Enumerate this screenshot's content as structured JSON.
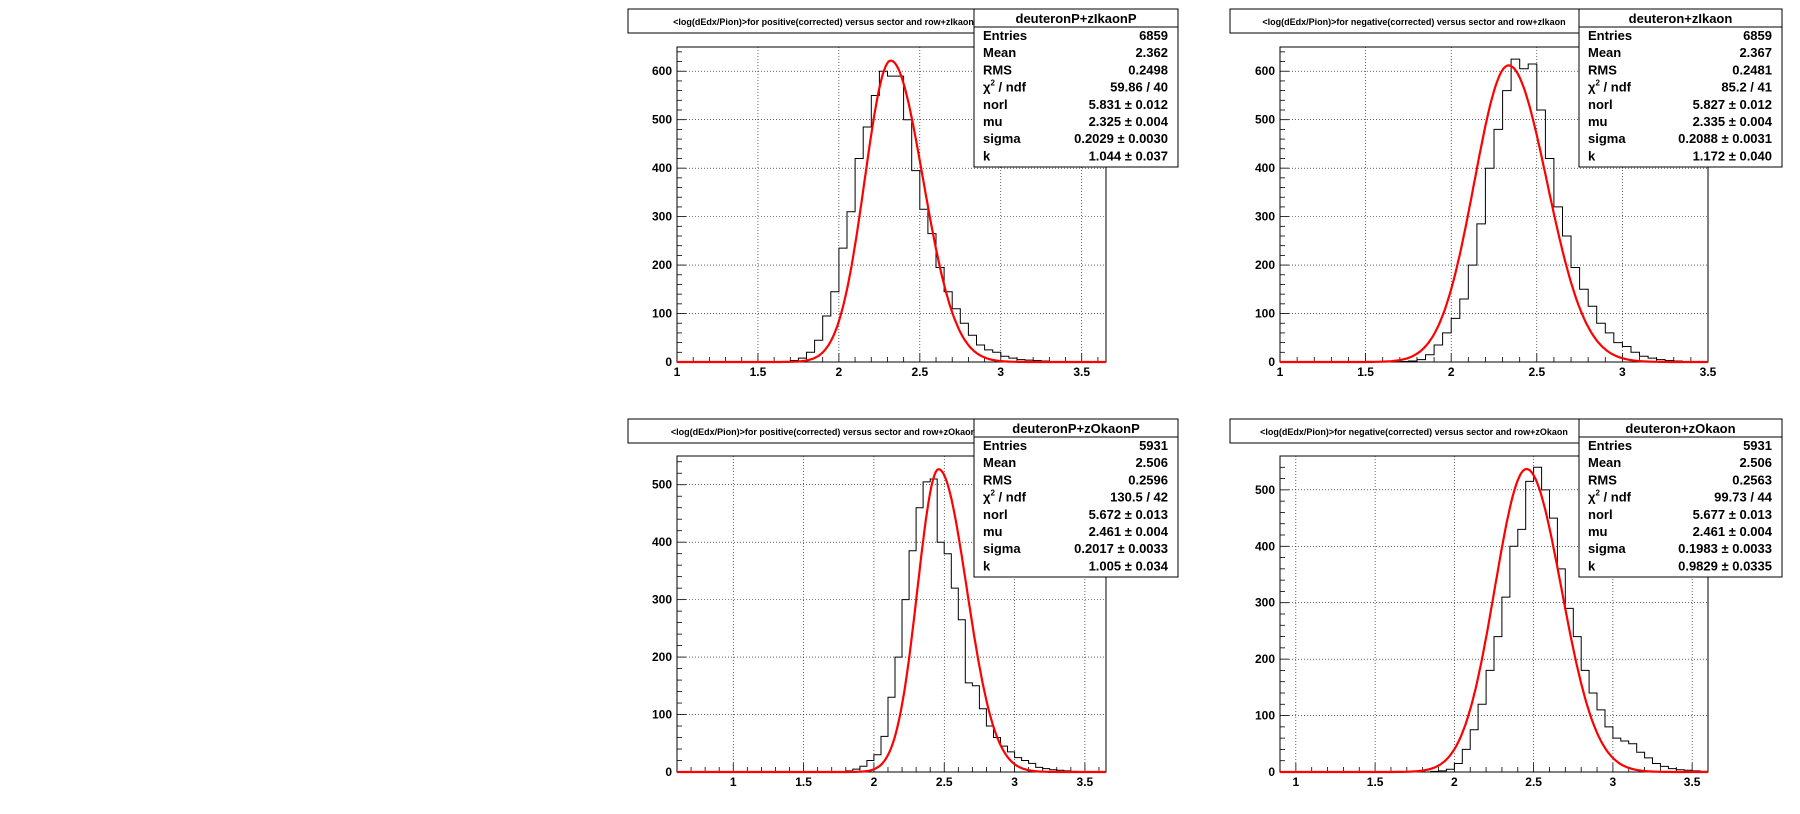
{
  "pads": [
    {
      "title": "<log(dEdx/Pion)>for positive(corrected) versus sector and row+zIkaonP",
      "stats_name": "deuteronP+zIkaonP",
      "stats": {
        "entries": "6859",
        "mean": "2.362",
        "rms": "0.2498",
        "chi2ndf": "59.86 / 40",
        "norl": "5.831 ± 0.012",
        "mu": "2.325 ± 0.004",
        "sigma": "0.2029 ± 0.0030",
        "k": "1.044 ± 0.037"
      }
    },
    {
      "title": "<log(dEdx/Pion)>for negative(corrected) versus sector and row+zIkaon",
      "stats_name": "deuteron+zIkaon",
      "stats": {
        "entries": "6859",
        "mean": "2.367",
        "rms": "0.2481",
        "chi2ndf": "85.2 / 41",
        "norl": "5.827 ± 0.012",
        "mu": "2.335 ± 0.004",
        "sigma": "0.2088 ± 0.0031",
        "k": "1.172 ± 0.040"
      }
    },
    {
      "title": "<log(dEdx/Pion)>for positive(corrected) versus sector and row+zOkaonP",
      "stats_name": "deuteronP+zOkaonP",
      "stats": {
        "entries": "5931",
        "mean": "2.506",
        "rms": "0.2596",
        "chi2ndf": "130.5 / 42",
        "norl": "5.672 ± 0.013",
        "mu": "2.461 ± 0.004",
        "sigma": "0.2017 ± 0.0033",
        "k": "1.005 ± 0.034"
      }
    },
    {
      "title": "<log(dEdx/Pion)>for negative(corrected) versus sector and row+zOkaon",
      "stats_name": "deuteron+zOkaon",
      "stats": {
        "entries": "5931",
        "mean": "2.506",
        "rms": "0.2563",
        "chi2ndf": "99.73 / 44",
        "norl": "5.677 ± 0.013",
        "mu": "2.461 ± 0.004",
        "sigma": "0.1983 ± 0.0033",
        "k": "0.9829 ± 0.0335"
      }
    }
  ],
  "stat_labels": {
    "entries": "Entries",
    "mean": "Mean",
    "rms": "RMS",
    "chi2ndf_chi": "χ",
    "chi2ndf_sup": "2",
    "chi2ndf_rest": " / ndf",
    "norl": "norl",
    "mu": "mu",
    "sigma": "sigma",
    "k": "k"
  },
  "colors": {
    "fit": "#ff0000",
    "histogram": "#000000",
    "grid": "#000000",
    "background": "#ffffff"
  },
  "chart_data": [
    {
      "type": "bar",
      "style": "step-histogram-with-fit",
      "xlim": [
        1,
        3.65
      ],
      "ylim": [
        0,
        650
      ],
      "xticks": [
        1,
        1.5,
        2,
        2.5,
        3,
        3.5
      ],
      "yticks": [
        0,
        100,
        200,
        300,
        400,
        500,
        600
      ],
      "grid": true,
      "legend": "top-right",
      "hist": {
        "x0": 1.0,
        "binwidth": 0.05,
        "values": [
          0,
          0,
          0,
          0,
          0,
          0,
          0,
          0,
          0,
          0,
          0,
          0,
          0,
          1,
          3,
          8,
          20,
          45,
          95,
          145,
          235,
          310,
          420,
          485,
          550,
          600,
          590,
          590,
          500,
          395,
          315,
          265,
          195,
          145,
          110,
          80,
          55,
          35,
          25,
          20,
          12,
          8,
          5,
          4,
          3,
          2,
          1,
          0,
          0,
          0,
          0,
          0,
          0
        ]
      },
      "fit": {
        "norm": 622,
        "mu": 2.32,
        "sigma_left": 0.16,
        "sigma_right": 0.2
      }
    },
    {
      "type": "bar",
      "style": "step-histogram-with-fit",
      "xlim": [
        1,
        3.5
      ],
      "ylim": [
        0,
        650
      ],
      "xticks": [
        1,
        1.5,
        2,
        2.5,
        3,
        3.5
      ],
      "yticks": [
        0,
        100,
        200,
        300,
        400,
        500,
        600
      ],
      "grid": true,
      "legend": "top-right",
      "hist": {
        "x0": 1.0,
        "binwidth": 0.05,
        "values": [
          0,
          0,
          0,
          0,
          0,
          0,
          0,
          0,
          0,
          0,
          0,
          0,
          0,
          0,
          1,
          2,
          5,
          15,
          35,
          60,
          90,
          130,
          200,
          285,
          400,
          480,
          560,
          625,
          605,
          615,
          520,
          420,
          320,
          260,
          195,
          150,
          115,
          80,
          60,
          40,
          32,
          20,
          12,
          8,
          5,
          3,
          2,
          1,
          0,
          0
        ]
      },
      "fit": {
        "norm": 612,
        "mu": 2.335,
        "sigma_left": 0.2,
        "sigma_right": 0.225
      }
    },
    {
      "type": "bar",
      "style": "step-histogram-with-fit",
      "xlim": [
        0.6,
        3.65
      ],
      "ylim": [
        0,
        550
      ],
      "xticks": [
        1,
        1.5,
        2,
        2.5,
        3,
        3.5
      ],
      "yticks": [
        0,
        100,
        200,
        300,
        400,
        500
      ],
      "grid": true,
      "legend": "top-right",
      "hist": {
        "x0": 1.8,
        "binwidth": 0.05,
        "values": [
          2,
          5,
          10,
          20,
          30,
          62,
          130,
          200,
          300,
          385,
          460,
          505,
          510,
          400,
          380,
          320,
          265,
          155,
          150,
          110,
          80,
          60,
          45,
          35,
          25,
          20,
          15,
          8,
          6,
          4,
          3,
          2,
          1,
          0,
          0,
          0,
          0,
          0
        ]
      },
      "fit": {
        "norm": 527,
        "mu": 2.46,
        "sigma_left": 0.15,
        "sigma_right": 0.2
      }
    },
    {
      "type": "bar",
      "style": "step-histogram-with-fit",
      "xlim": [
        0.9,
        3.6
      ],
      "ylim": [
        0,
        560
      ],
      "xticks": [
        1,
        1.5,
        2,
        2.5,
        3,
        3.5
      ],
      "yticks": [
        0,
        100,
        200,
        300,
        400,
        500
      ],
      "grid": true,
      "legend": "top-right",
      "hist": {
        "x0": 1.0,
        "binwidth": 0.05,
        "values": [
          0,
          0,
          0,
          0,
          0,
          0,
          0,
          0,
          0,
          0,
          0,
          0,
          0,
          0,
          0,
          0,
          0,
          1,
          2,
          5,
          15,
          40,
          75,
          120,
          180,
          240,
          310,
          400,
          430,
          515,
          540,
          500,
          450,
          360,
          290,
          240,
          180,
          140,
          110,
          80,
          60,
          55,
          50,
          35,
          25,
          15,
          10,
          6,
          4,
          3,
          2,
          1,
          0,
          0
        ]
      },
      "fit": {
        "norm": 537,
        "mu": 2.455,
        "sigma_left": 0.2,
        "sigma_right": 0.22
      }
    }
  ]
}
